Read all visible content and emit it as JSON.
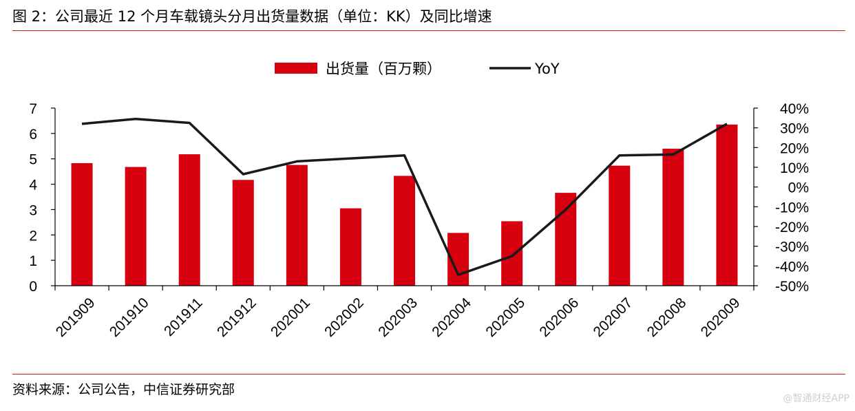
{
  "header": {
    "title": "图 2：公司最近 12 个月车载镜头分月出货量数据（单位：KK）及同比增速"
  },
  "footer": {
    "source": "资料来源：公司公告，中信证券研究部",
    "watermark": "@智通财经APP"
  },
  "colors": {
    "bar": "#d7000f",
    "line": "#1a1a1a",
    "rule": "#c9191e"
  },
  "chart_data": {
    "type": "bar",
    "categories": [
      "201909",
      "201910",
      "201911",
      "201912",
      "202001",
      "202002",
      "202003",
      "202004",
      "202005",
      "202006",
      "202007",
      "202008",
      "202009"
    ],
    "series": [
      {
        "name": "出货量（百万颗）",
        "type": "bar",
        "axis": "left",
        "values": [
          4.83,
          4.68,
          5.18,
          4.17,
          4.76,
          3.05,
          4.33,
          2.08,
          2.54,
          3.66,
          4.73,
          5.4,
          6.35
        ]
      },
      {
        "name": "YoY",
        "type": "line",
        "axis": "right",
        "values": [
          0.32,
          0.345,
          0.325,
          0.065,
          0.13,
          0.145,
          0.16,
          -0.445,
          -0.35,
          -0.115,
          0.16,
          0.165,
          0.32
        ]
      }
    ],
    "y_left": {
      "min": 0,
      "max": 7,
      "ticks": [
        "0",
        "1",
        "2",
        "3",
        "4",
        "5",
        "6",
        "7"
      ]
    },
    "y_right": {
      "min": -0.5,
      "max": 0.4,
      "ticks": [
        "-50%",
        "-40%",
        "-30%",
        "-20%",
        "-10%",
        "0%",
        "10%",
        "20%",
        "30%",
        "40%"
      ]
    },
    "legend_position": "top-center",
    "grid": false
  }
}
